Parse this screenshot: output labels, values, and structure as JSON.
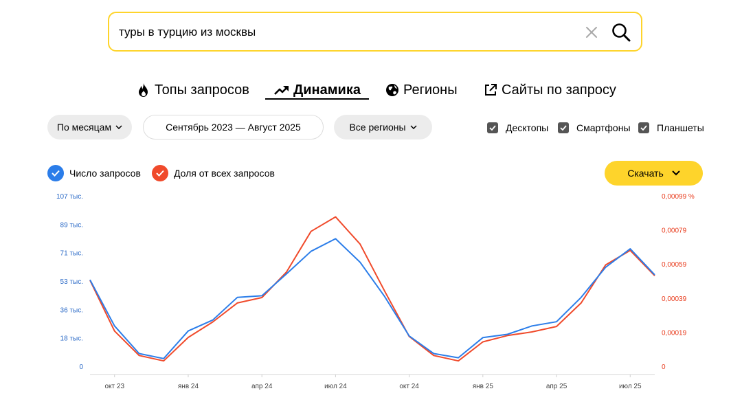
{
  "search": {
    "query": "туры в турцию из москвы"
  },
  "tabs": [
    {
      "label": "Топы запросов",
      "icon": "fire-icon"
    },
    {
      "label": "Динамика",
      "icon": "trend-icon",
      "active": true
    },
    {
      "label": "Регионы",
      "icon": "globe-icon"
    },
    {
      "label": "Сайты по запросу",
      "icon": "external-link-icon"
    }
  ],
  "filters": {
    "period_label": "По месяцам",
    "date_range": "Сентябрь 2023 — Август 2025",
    "region_label": "Все регионы",
    "devices": [
      {
        "label": "Десктопы",
        "checked": true
      },
      {
        "label": "Смартфоны",
        "checked": true
      },
      {
        "label": "Планшеты",
        "checked": true
      }
    ]
  },
  "legend": {
    "series1": "Число запросов",
    "series2": "Доля от всех запросов",
    "series1_color": "#2b7de9",
    "series2_color": "#f04a2b"
  },
  "download": {
    "label": "Скачать"
  },
  "colors": {
    "accent": "#fed42b",
    "blue_axis": "#2b6ac7",
    "red_axis": "#e8391a"
  },
  "chart_data": {
    "type": "line",
    "x": [
      "сен 23",
      "окт 23",
      "ноя 23",
      "дек 23",
      "янв 24",
      "фев 24",
      "мар 24",
      "апр 24",
      "май 24",
      "июн 24",
      "июл 24",
      "авг 24",
      "сен 24",
      "окт 24",
      "ноя 24",
      "дек 24",
      "янв 25",
      "фев 25",
      "мар 25",
      "апр 25",
      "май 25",
      "июн 25",
      "июл 25",
      "авг 25"
    ],
    "x_tick_labels": [
      "окт 23",
      "янв 24",
      "апр 24",
      "июл 24",
      "окт 24",
      "янв 25",
      "апр 25",
      "июл 25"
    ],
    "y_left_ticks": [
      "0",
      "18 тыс.",
      "36 тыс.",
      "53 тыс.",
      "71 тыс.",
      "89 тыс.",
      "107 тыс."
    ],
    "y_right_ticks": [
      "0",
      "0,00019",
      "0,00039",
      "0,00059",
      "0,00079",
      "0,00099 %"
    ],
    "ylim_left": [
      0,
      107
    ],
    "ylim_right": [
      0,
      0.00099
    ],
    "grid": false,
    "series": [
      {
        "name": "Число запросов",
        "axis": "left",
        "unit": "тыс.",
        "values": [
          56.5,
          29,
          12.5,
          9.5,
          26,
          32.5,
          46,
          47,
          60,
          73.5,
          81,
          67,
          46.5,
          23,
          12.5,
          10,
          22,
          24,
          29,
          31.5,
          46,
          64,
          75,
          59.5
        ]
      },
      {
        "name": "Доля от всех запросов",
        "axis": "right",
        "unit": "%",
        "values": [
          0.00052,
          0.00024,
          0.000105,
          7.5e-05,
          0.000205,
          0.00029,
          0.000395,
          0.000425,
          0.000565,
          0.00079,
          0.00087,
          0.00072,
          0.00046,
          0.00021,
          0.000105,
          7.5e-05,
          0.00018,
          0.000215,
          0.000235,
          0.000265,
          0.000395,
          0.000605,
          0.000685,
          0.000545
        ]
      }
    ]
  }
}
